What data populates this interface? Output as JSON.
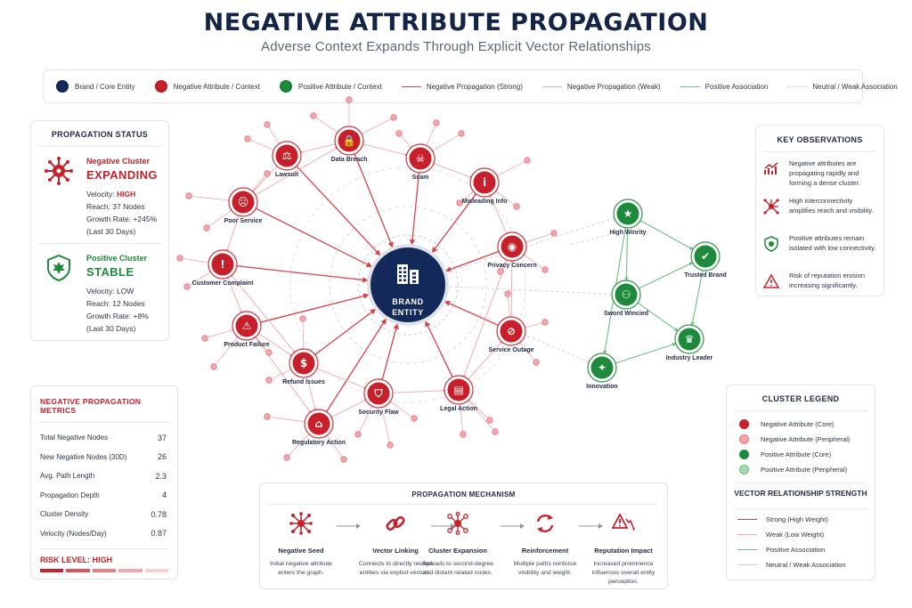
{
  "header": {
    "title": "NEGATIVE ATTRIBUTE PROPAGATION",
    "subtitle": "Adverse Context Expands Through Explicit Vector Relationships"
  },
  "legend": {
    "items": [
      {
        "label": "Brand / Core Entity",
        "kind": "dot",
        "color": "#142a5c"
      },
      {
        "label": "Negative Attribute / Context",
        "kind": "dot",
        "color": "#c8202a"
      },
      {
        "label": "Positive Attribute / Context",
        "kind": "dot",
        "color": "#1e8a3c"
      },
      {
        "label": "Negative Propagation (Strong)",
        "kind": "line",
        "color": "#d8434b"
      },
      {
        "label": "Negative Propagation (Weak)",
        "kind": "line",
        "color": "#f0a6ab"
      },
      {
        "label": "Positive Association",
        "kind": "line",
        "color": "#6cbf82"
      },
      {
        "label": "Neutral / Weak Association",
        "kind": "line",
        "color": "#c9ced8"
      }
    ]
  },
  "propagation_status": {
    "title": "PROPAGATION STATUS",
    "negative": {
      "name": "Negative Cluster",
      "state": "EXPANDING",
      "velocity_label": "Velocity:",
      "velocity_value": "HIGH",
      "reach": "Reach: 37 Nodes",
      "growth": "Growth Rate: +245%",
      "period": "(Last 30 Days)"
    },
    "positive": {
      "name": "Positive Cluster",
      "state": "STABLE",
      "velocity": "Velocity: LOW",
      "reach": "Reach: 12 Nodes",
      "growth": "Growth Rate: +8%",
      "period": "(Last 30 Days)"
    }
  },
  "metrics": {
    "title": "NEGATIVE PROPAGATION METRICS",
    "rows": [
      {
        "label": "Total Negative Nodes",
        "value": "37"
      },
      {
        "label": "New Negative Nodes (30D)",
        "value": "26"
      },
      {
        "label": "Avg. Path Length",
        "value": "2.3"
      },
      {
        "label": "Propagation Depth",
        "value": "4"
      },
      {
        "label": "Cluster Density",
        "value": "0.78"
      },
      {
        "label": "Velocity (Nodes/Day)",
        "value": "0.87"
      }
    ],
    "risk_label": "RISK LEVEL: HIGH",
    "risk_colors": [
      "#c8202a",
      "#d9545b",
      "#e57f85",
      "#efa9ad",
      "#f6d2d4"
    ]
  },
  "observations": {
    "title": "KEY OBSERVATIONS",
    "items": [
      {
        "icon": "trend-up-icon",
        "text": "Negative attributes are propagating rapidly and forming a dense cluster."
      },
      {
        "icon": "network-icon",
        "text": "High interconnectivity amplifies reach and visibility."
      },
      {
        "icon": "shield-icon",
        "text": "Positive attributes remain isolated with low connectivity."
      },
      {
        "icon": "warning-icon",
        "text": "Risk of reputation erosion increasing significantly."
      }
    ]
  },
  "cluster_legend": {
    "title": "CLUSTER LEGEND",
    "items": [
      {
        "label": "Negative Attribute (Core)",
        "color": "#c8202a"
      },
      {
        "label": "Negative Attribute (Peripheral)",
        "color": "#f2a5aa"
      },
      {
        "label": "Positive Attribute (Core)",
        "color": "#1e8a3c"
      },
      {
        "label": "Positive Attribute (Peripheral)",
        "color": "#a6dbb4"
      }
    ],
    "vector_title": "VECTOR RELATIONSHIP STRENGTH",
    "vectors": [
      {
        "label": "Strong (High Weight)",
        "color": "#d8434b"
      },
      {
        "label": "Weak (Low Weight)",
        "color": "#f0a6ab"
      },
      {
        "label": "Positive Association",
        "color": "#6cbf82"
      },
      {
        "label": "Neutral / Weak Association",
        "color": "#c9ced8"
      }
    ]
  },
  "mechanism": {
    "title": "PROPAGATION MECHANISM",
    "steps": [
      {
        "icon": "seed-icon",
        "title": "Negative Seed",
        "desc": "Initial negative attribute enters the graph."
      },
      {
        "icon": "link-icon",
        "title": "Vector Linking",
        "desc": "Connects to directly related entities via explicit vectors."
      },
      {
        "icon": "expansion-icon",
        "title": "Cluster Expansion",
        "desc": "Spreads to second-degree and distant related nodes."
      },
      {
        "icon": "reinforce-icon",
        "title": "Reinforcement",
        "desc": "Multiple paths reinforce visibility and weight."
      },
      {
        "icon": "impact-icon",
        "title": "Reputation Impact",
        "desc": "Increased prominence influences overall entity perception."
      }
    ]
  },
  "graph": {
    "brand": {
      "line1": "BRAND",
      "line2": "ENTITY"
    },
    "negative_nodes": [
      {
        "label": "Data Breach",
        "icon": "lock-icon"
      },
      {
        "label": "Lawsuit",
        "icon": "gavel-icon"
      },
      {
        "label": "Scam",
        "icon": "skull-icon"
      },
      {
        "label": "Misleading Info",
        "icon": "info-icon"
      },
      {
        "label": "Poor Service",
        "icon": "frown-icon"
      },
      {
        "label": "Privacy Concern",
        "icon": "eye-icon"
      },
      {
        "label": "Customer Complaint",
        "icon": "alert-icon"
      },
      {
        "label": "Product Failure",
        "icon": "warning-icon"
      },
      {
        "label": "Service Outage",
        "icon": "outage-icon"
      },
      {
        "label": "Refund Issues",
        "icon": "dollar-icon"
      },
      {
        "label": "Security Flaw",
        "icon": "shield-break-icon"
      },
      {
        "label": "Legal Action",
        "icon": "document-icon"
      },
      {
        "label": "Regulatory Action",
        "icon": "bank-icon"
      }
    ],
    "positive_nodes": [
      {
        "label": "High Winrity",
        "icon": "star-icon"
      },
      {
        "label": "Trusted Brand",
        "icon": "shield-check-icon"
      },
      {
        "label": "Sword Wincied",
        "icon": "users-icon"
      },
      {
        "label": "Industry Leader",
        "icon": "trophy-icon"
      },
      {
        "label": "Innovation",
        "icon": "bulb-icon"
      }
    ]
  }
}
